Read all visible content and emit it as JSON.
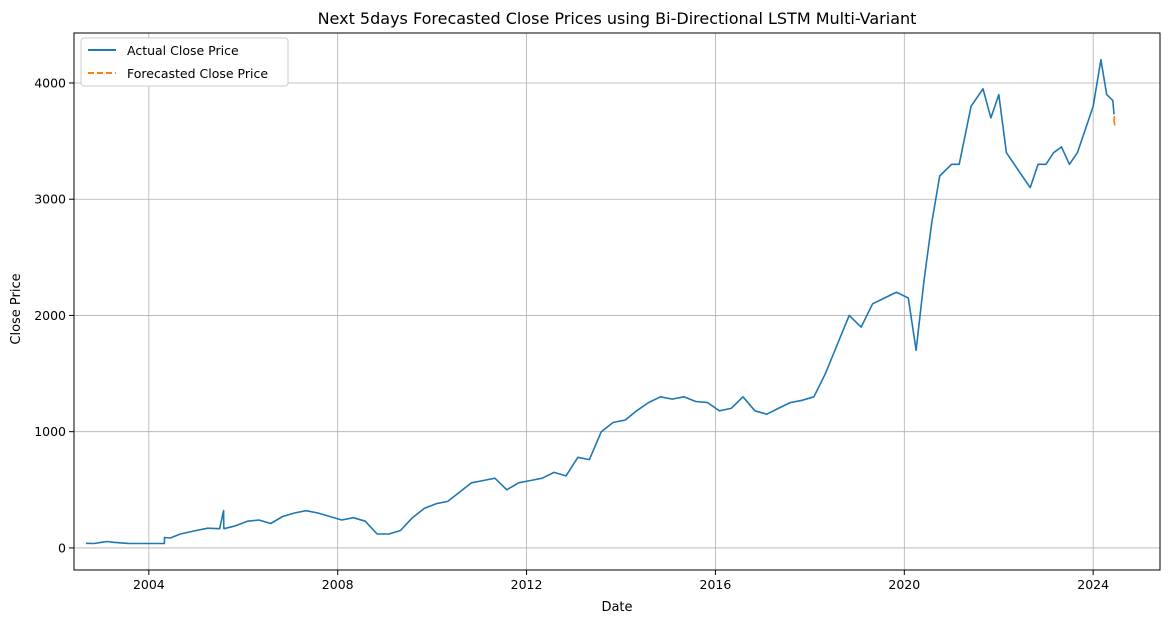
{
  "chart_data": {
    "type": "line",
    "title": "Next 5days Forecasted Close Prices using Bi-Directional LSTM Multi-Variant",
    "xlabel": "Date",
    "ylabel": "Close Price",
    "xlim": [
      "2002-06-01",
      "2025-06-01"
    ],
    "ylim": [
      -190,
      4430
    ],
    "x_ticks": [
      "2004",
      "2008",
      "2012",
      "2016",
      "2020",
      "2024"
    ],
    "y_ticks": [
      0,
      1000,
      2000,
      3000,
      4000
    ],
    "grid": true,
    "legend_position": "top-left",
    "series": [
      {
        "name": "Actual Close Price",
        "color": "#1f77b4",
        "style": "solid",
        "x": [
          "2002-09-01",
          "2002-11-01",
          "2003-01-01",
          "2003-02-15",
          "2003-04-01",
          "2003-08-01",
          "2004-01-01",
          "2004-04-30",
          "2004-05-01",
          "2004-06-15",
          "2004-09-01",
          "2005-01-01",
          "2005-04-01",
          "2005-07-01",
          "2005-08-01",
          "2005-08-03",
          "2005-08-05",
          "2005-11-01",
          "2006-02-01",
          "2006-05-01",
          "2006-08-01",
          "2006-11-01",
          "2007-02-01",
          "2007-05-01",
          "2007-08-01",
          "2007-11-01",
          "2008-02-01",
          "2008-05-01",
          "2008-08-01",
          "2008-11-01",
          "2009-02-01",
          "2009-05-01",
          "2009-08-01",
          "2009-11-01",
          "2010-02-01",
          "2010-05-01",
          "2010-08-01",
          "2010-11-01",
          "2011-02-01",
          "2011-05-01",
          "2011-08-01",
          "2011-11-01",
          "2012-02-01",
          "2012-05-01",
          "2012-08-01",
          "2012-11-01",
          "2013-02-01",
          "2013-05-01",
          "2013-08-01",
          "2013-11-01",
          "2014-02-01",
          "2014-05-01",
          "2014-08-01",
          "2014-11-01",
          "2015-02-01",
          "2015-05-01",
          "2015-08-01",
          "2015-11-01",
          "2016-02-01",
          "2016-05-01",
          "2016-08-01",
          "2016-11-01",
          "2017-02-01",
          "2017-05-01",
          "2017-08-01",
          "2017-11-01",
          "2018-02-01",
          "2018-05-01",
          "2018-08-01",
          "2018-11-01",
          "2019-02-01",
          "2019-05-01",
          "2019-08-01",
          "2019-11-01",
          "2020-02-01",
          "2020-04-01",
          "2020-06-01",
          "2020-08-01",
          "2020-10-01",
          "2021-01-01",
          "2021-03-01",
          "2021-06-01",
          "2021-09-01",
          "2021-11-01",
          "2022-01-01",
          "2022-03-01",
          "2022-05-01",
          "2022-07-01",
          "2022-09-01",
          "2022-11-01",
          "2023-01-01",
          "2023-03-01",
          "2023-05-01",
          "2023-07-01",
          "2023-09-01",
          "2023-11-01",
          "2024-01-01",
          "2024-03-01",
          "2024-04-15",
          "2024-06-01",
          "2024-06-10"
        ],
        "y": [
          40,
          38,
          48,
          55,
          48,
          38,
          38,
          38,
          90,
          85,
          120,
          150,
          170,
          165,
          320,
          170,
          165,
          190,
          230,
          240,
          210,
          270,
          300,
          320,
          300,
          270,
          240,
          260,
          230,
          120,
          120,
          150,
          260,
          340,
          380,
          400,
          480,
          560,
          580,
          600,
          500,
          560,
          580,
          600,
          650,
          620,
          780,
          760,
          1000,
          1080,
          1100,
          1180,
          1250,
          1300,
          1280,
          1300,
          1260,
          1250,
          1180,
          1200,
          1300,
          1180,
          1150,
          1200,
          1250,
          1270,
          1300,
          1500,
          1750,
          2000,
          1900,
          2100,
          2150,
          2200,
          2150,
          1700,
          2300,
          2800,
          3200,
          3300,
          3300,
          3800,
          3950,
          3700,
          3900,
          3400,
          3300,
          3200,
          3100,
          3300,
          3300,
          3400,
          3450,
          3300,
          3400,
          3600,
          3800,
          4200,
          3900,
          3850,
          3730
        ]
      },
      {
        "name": "Forecasted Close Price",
        "color": "#ff7f0e",
        "style": "dashed",
        "x": [
          "2024-06-11",
          "2024-06-12",
          "2024-06-13",
          "2024-06-14",
          "2024-06-15"
        ],
        "y": [
          3700,
          3660,
          3710,
          3640,
          3680
        ]
      }
    ]
  }
}
